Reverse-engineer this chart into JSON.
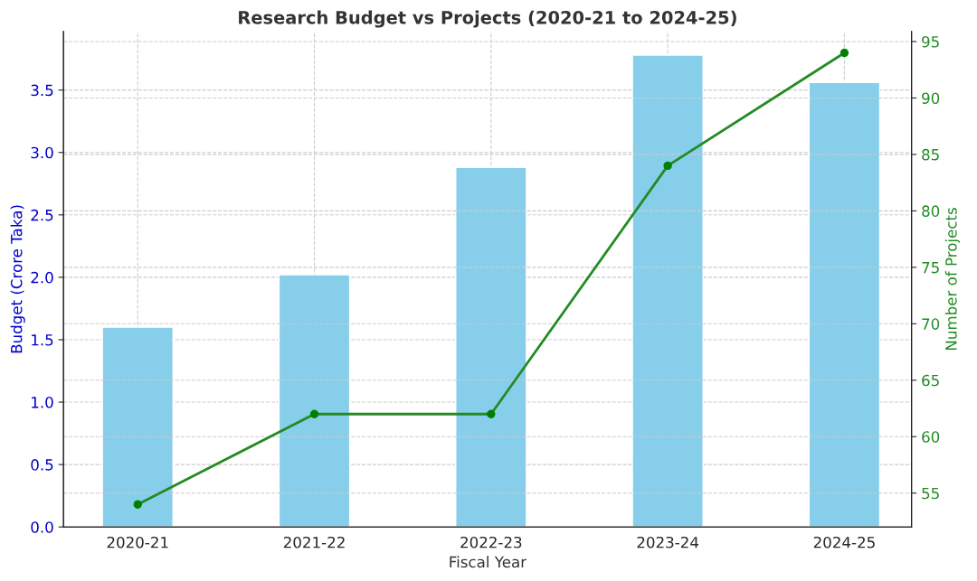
{
  "chart_data": {
    "type": "bar",
    "title": "Research Budget vs Projects (2020-21 to 2024-25)",
    "xlabel": "Fiscal Year",
    "ylabel": "Budget (Crore Taka)",
    "y2label": "Number of Projects",
    "categories": [
      "2020-21",
      "2021-22",
      "2022-23",
      "2023-24",
      "2024-25"
    ],
    "series": [
      {
        "color": "#87ceeb",
        "values": [
          1.6,
          2.02,
          2.88,
          3.78,
          3.56
        ]
      },
      {
        "type": "line",
        "axis": "y2",
        "color": "#228b22",
        "marker": "circle",
        "values": [
          54,
          62,
          62,
          84,
          94
        ]
      }
    ],
    "ylim": [
      0,
      3.97
    ],
    "yticks": [
      {
        "value": 0,
        "label": "0.0"
      },
      0.5,
      {
        "value": 1,
        "label": "1.0"
      },
      1.5,
      {
        "value": 2,
        "label": "2.0"
      },
      2.5,
      {
        "value": 3,
        "label": "3.0"
      },
      3.5
    ],
    "y2lim": [
      52.0,
      95.9
    ],
    "y2ticks": [
      55,
      60,
      65,
      70,
      75,
      80,
      85,
      90,
      95
    ],
    "grid": true,
    "line_style": "solid"
  }
}
